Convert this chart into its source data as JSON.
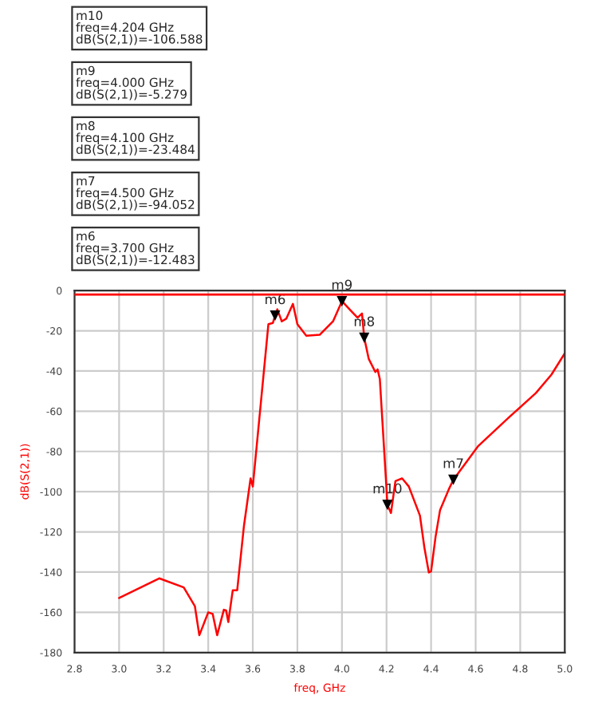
{
  "chart_data": {
    "type": "line",
    "xlabel": "freq, GHz",
    "ylabel": "dB(S(2,1))",
    "xlim": [
      2.8,
      5.0
    ],
    "xticks": [
      {
        "value": 2.8,
        "label": "2.8"
      },
      {
        "value": 3.0,
        "label": "3.0"
      },
      {
        "value": 3.2,
        "label": "3.2"
      },
      {
        "value": 3.4,
        "label": "3.4"
      },
      {
        "value": 3.6,
        "label": "3.6"
      },
      {
        "value": 3.8,
        "label": "3.8"
      },
      {
        "value": 4.0,
        "label": "4.0"
      },
      {
        "value": 4.2,
        "label": "4.2"
      },
      {
        "value": 4.4,
        "label": "4.4"
      },
      {
        "value": 4.6,
        "label": "4.6"
      },
      {
        "value": 4.8,
        "label": "4.8"
      },
      {
        "value": 5.0,
        "label": "5.0"
      }
    ],
    "ylim": [
      -180,
      0
    ],
    "yticks": [
      -180,
      -160,
      -140,
      -120,
      -100,
      -80,
      -60,
      -40,
      -20,
      0
    ],
    "grid": true,
    "series": [
      {
        "color": "#ff0000",
        "x": [
          3.0,
          3.18,
          3.29,
          3.34,
          3.36,
          3.4,
          3.42,
          3.44,
          3.47,
          3.48,
          3.49,
          3.51,
          3.53,
          3.56,
          3.59,
          3.6,
          3.67,
          3.69,
          3.7,
          3.71,
          3.73,
          3.75,
          3.78,
          3.8,
          3.84,
          3.9,
          3.96,
          4.0,
          4.04,
          4.07,
          4.09,
          4.1,
          4.12,
          4.15,
          4.16,
          4.17,
          4.2,
          4.204,
          4.22,
          4.24,
          4.27,
          4.3,
          4.35,
          4.37,
          4.39,
          4.4,
          4.42,
          4.44,
          4.48,
          4.5,
          4.61,
          4.75,
          4.87,
          4.94,
          5.0
        ],
        "values": [
          -152.9,
          -143.1,
          -147.6,
          -156.9,
          -171.4,
          -160,
          -160.8,
          -171.4,
          -158.7,
          -159,
          -164.8,
          -149,
          -149,
          -117.2,
          -93.4,
          -97.4,
          -16.7,
          -16.1,
          -12.483,
          -9.3,
          -15.3,
          -14,
          -6.6,
          -16.7,
          -22.5,
          -22,
          -15.3,
          -5.279,
          -10,
          -13.5,
          -11.4,
          -23.484,
          -33.9,
          -40.5,
          -39.2,
          -44,
          -98.7,
          -106.588,
          -110.6,
          -94.7,
          -93.4,
          -97.4,
          -111.9,
          -127.8,
          -140.2,
          -139.7,
          -122.5,
          -109.3,
          -98.7,
          -94.052,
          -77.5,
          -63,
          -51,
          -41.8,
          -31.2
        ]
      },
      {
        "type": "scatter",
        "color": "#000000",
        "marker": "triangle",
        "x": [
          3.7,
          4.0,
          4.1,
          4.204,
          4.5
        ],
        "values": [
          -12.483,
          -5.279,
          -23.484,
          -106.588,
          -94.052
        ]
      }
    ],
    "ref_lines": [
      {
        "axis": "y",
        "value": -2,
        "color": "#ff0000"
      }
    ],
    "annotations": [
      {
        "text": "m6",
        "x": 3.7,
        "y": -12.483
      },
      {
        "text": "m9",
        "x": 4.0,
        "y": -5.279
      },
      {
        "text": "m8",
        "x": 4.1,
        "y": -23.484
      },
      {
        "text": "m10",
        "x": 4.204,
        "y": -106.588
      },
      {
        "text": "m7",
        "x": 4.5,
        "y": -94.052
      },
      "m10\nfreq=4.204 GHz\ndB(S(2,1))=-106.588",
      "m9\nfreq=4.000 GHz\ndB(S(2,1))=-5.279",
      "m8\nfreq=4.100 GHz\ndB(S(2,1))=-23.484",
      "m7\nfreq=4.500 GHz\ndB(S(2,1))=-94.052",
      "m6\nfreq=3.700 GHz\ndB(S(2,1))=-12.483"
    ]
  }
}
